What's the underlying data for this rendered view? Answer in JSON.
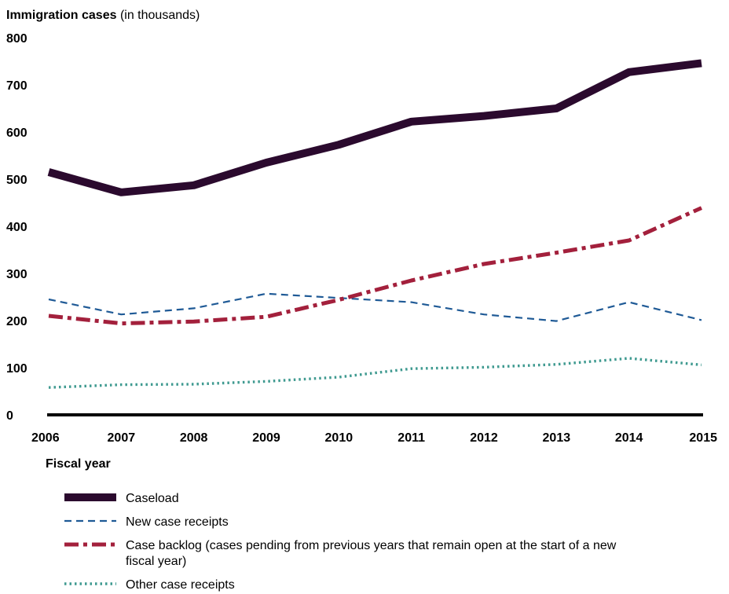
{
  "chart_data": {
    "type": "line",
    "ylabel": "Immigration cases",
    "ylabel_unit": "(in thousands)",
    "xlabel": "Fiscal year",
    "ylim": [
      0,
      800
    ],
    "yticks": [
      0,
      100,
      200,
      300,
      400,
      500,
      600,
      700,
      800
    ],
    "x": [
      2006,
      2007,
      2008,
      2009,
      2010,
      2011,
      2012,
      2013,
      2014,
      2015
    ],
    "grid": false,
    "legend_position": "bottom",
    "series": [
      {
        "name": "Caseload",
        "color": "#2b0a2e",
        "style": "solid-thick",
        "values": [
          515,
          472,
          487,
          535,
          573,
          622,
          634,
          650,
          727,
          746
        ]
      },
      {
        "name": "New case receipts",
        "color": "#1f5a96",
        "style": "dashed",
        "values": [
          245,
          213,
          226,
          257,
          248,
          239,
          213,
          199,
          239,
          201
        ]
      },
      {
        "name": "Case backlog (cases pending from previous years that remain open at the start of a new fiscal year)",
        "color": "#a3203c",
        "style": "dash-dot",
        "values": [
          210,
          194,
          198,
          208,
          244,
          285,
          320,
          344,
          370,
          439
        ]
      },
      {
        "name": "Other case receipts",
        "color": "#3f9a90",
        "style": "dotted",
        "values": [
          58,
          64,
          65,
          71,
          80,
          98,
          101,
          107,
          120,
          106
        ]
      }
    ]
  }
}
